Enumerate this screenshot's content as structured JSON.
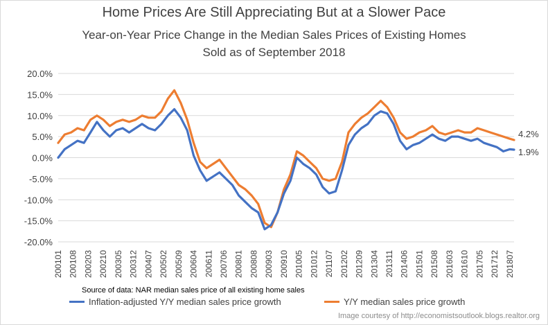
{
  "chart_data": {
    "type": "line",
    "title": "Home Prices Are Still Appreciating But at a Slower Pace",
    "subtitle_line1": "Year-on-Year Price Change in the Median Sales Prices of Existing Homes",
    "subtitle_line2": "Sold as of September 2018",
    "ylim": [
      -20,
      20
    ],
    "yticks": [
      "20.0%",
      "15.0%",
      "10.0%",
      "5.0%",
      "0.0%",
      "-5.0%",
      "-10.0%",
      "-15.0%",
      "-20.0%"
    ],
    "xlim": [
      "2001-01",
      "2018-09"
    ],
    "xticks": [
      "200101",
      "200108",
      "200203",
      "200210",
      "200305",
      "200312",
      "200407",
      "200502",
      "200509",
      "200604",
      "200611",
      "200706",
      "200801",
      "200808",
      "200903",
      "200910",
      "201005",
      "201012",
      "201107",
      "201202",
      "201209",
      "201304",
      "201311",
      "201406",
      "201501",
      "201508",
      "201603",
      "201610",
      "201705",
      "201712",
      "201807"
    ],
    "grid": "horizontal",
    "legend_position": "bottom",
    "series": [
      {
        "name": "Inflation-adjusted Y/Y median sales price growth",
        "color": "#4472c4",
        "end_label": "1.9%",
        "points": [
          [
            "2001-01",
            0.0
          ],
          [
            "2001-04",
            2.0
          ],
          [
            "2001-07",
            3.0
          ],
          [
            "2001-10",
            4.0
          ],
          [
            "2002-01",
            3.5
          ],
          [
            "2002-04",
            6.0
          ],
          [
            "2002-07",
            8.5
          ],
          [
            "2002-10",
            6.5
          ],
          [
            "2003-01",
            5.0
          ],
          [
            "2003-04",
            6.5
          ],
          [
            "2003-07",
            7.0
          ],
          [
            "2003-10",
            6.0
          ],
          [
            "2004-01",
            7.0
          ],
          [
            "2004-04",
            8.0
          ],
          [
            "2004-07",
            7.0
          ],
          [
            "2004-10",
            6.5
          ],
          [
            "2005-01",
            8.0
          ],
          [
            "2005-04",
            10.0
          ],
          [
            "2005-07",
            11.5
          ],
          [
            "2005-10",
            9.5
          ],
          [
            "2006-01",
            6.5
          ],
          [
            "2006-04",
            0.5
          ],
          [
            "2006-07",
            -3.0
          ],
          [
            "2006-10",
            -5.5
          ],
          [
            "2007-01",
            -4.5
          ],
          [
            "2007-04",
            -3.5
          ],
          [
            "2007-07",
            -5.0
          ],
          [
            "2007-10",
            -6.5
          ],
          [
            "2008-01",
            -9.0
          ],
          [
            "2008-04",
            -10.5
          ],
          [
            "2008-07",
            -12.0
          ],
          [
            "2008-10",
            -13.0
          ],
          [
            "2009-01",
            -17.0
          ],
          [
            "2009-04",
            -16.0
          ],
          [
            "2009-07",
            -13.0
          ],
          [
            "2009-10",
            -8.5
          ],
          [
            "2010-01",
            -5.5
          ],
          [
            "2010-04",
            0.0
          ],
          [
            "2010-07",
            -1.5
          ],
          [
            "2010-10",
            -2.5
          ],
          [
            "2011-01",
            -4.0
          ],
          [
            "2011-04",
            -7.0
          ],
          [
            "2011-07",
            -8.5
          ],
          [
            "2011-10",
            -8.0
          ],
          [
            "2012-01",
            -3.0
          ],
          [
            "2012-04",
            3.0
          ],
          [
            "2012-07",
            5.5
          ],
          [
            "2012-10",
            7.0
          ],
          [
            "2013-01",
            8.0
          ],
          [
            "2013-04",
            10.0
          ],
          [
            "2013-07",
            11.0
          ],
          [
            "2013-10",
            10.5
          ],
          [
            "2014-01",
            8.0
          ],
          [
            "2014-04",
            4.0
          ],
          [
            "2014-07",
            2.0
          ],
          [
            "2014-10",
            3.0
          ],
          [
            "2015-01",
            3.5
          ],
          [
            "2015-04",
            4.5
          ],
          [
            "2015-07",
            5.5
          ],
          [
            "2015-10",
            4.5
          ],
          [
            "2016-01",
            4.0
          ],
          [
            "2016-04",
            5.0
          ],
          [
            "2016-07",
            5.0
          ],
          [
            "2016-10",
            4.5
          ],
          [
            "2017-01",
            4.0
          ],
          [
            "2017-04",
            4.5
          ],
          [
            "2017-07",
            3.5
          ],
          [
            "2017-10",
            3.0
          ],
          [
            "2018-01",
            2.5
          ],
          [
            "2018-04",
            1.5
          ],
          [
            "2018-07",
            2.0
          ],
          [
            "2018-09",
            1.9
          ]
        ]
      },
      {
        "name": "Y/Y median sales price growth",
        "color": "#ed7d31",
        "end_label": "4.2%",
        "points": [
          [
            "2001-01",
            3.5
          ],
          [
            "2001-04",
            5.5
          ],
          [
            "2001-07",
            6.0
          ],
          [
            "2001-10",
            7.0
          ],
          [
            "2002-01",
            6.5
          ],
          [
            "2002-04",
            9.0
          ],
          [
            "2002-07",
            10.0
          ],
          [
            "2002-10",
            9.0
          ],
          [
            "2003-01",
            7.5
          ],
          [
            "2003-04",
            8.5
          ],
          [
            "2003-07",
            9.0
          ],
          [
            "2003-10",
            8.5
          ],
          [
            "2004-01",
            9.0
          ],
          [
            "2004-04",
            10.0
          ],
          [
            "2004-07",
            9.5
          ],
          [
            "2004-10",
            9.5
          ],
          [
            "2005-01",
            11.0
          ],
          [
            "2005-04",
            14.0
          ],
          [
            "2005-07",
            16.0
          ],
          [
            "2005-10",
            13.0
          ],
          [
            "2006-01",
            9.0
          ],
          [
            "2006-04",
            3.5
          ],
          [
            "2006-07",
            -1.0
          ],
          [
            "2006-10",
            -2.5
          ],
          [
            "2007-01",
            -1.5
          ],
          [
            "2007-04",
            -0.5
          ],
          [
            "2007-07",
            -2.5
          ],
          [
            "2007-10",
            -4.5
          ],
          [
            "2008-01",
            -6.5
          ],
          [
            "2008-04",
            -7.5
          ],
          [
            "2008-07",
            -9.0
          ],
          [
            "2008-10",
            -11.0
          ],
          [
            "2009-01",
            -15.5
          ],
          [
            "2009-04",
            -16.5
          ],
          [
            "2009-07",
            -13.0
          ],
          [
            "2009-10",
            -7.5
          ],
          [
            "2010-01",
            -4.0
          ],
          [
            "2010-04",
            1.5
          ],
          [
            "2010-07",
            0.5
          ],
          [
            "2010-10",
            -1.0
          ],
          [
            "2011-01",
            -2.5
          ],
          [
            "2011-04",
            -5.0
          ],
          [
            "2011-07",
            -5.5
          ],
          [
            "2011-10",
            -5.0
          ],
          [
            "2012-01",
            -1.0
          ],
          [
            "2012-04",
            6.0
          ],
          [
            "2012-07",
            8.0
          ],
          [
            "2012-10",
            9.5
          ],
          [
            "2013-01",
            10.5
          ],
          [
            "2013-04",
            12.0
          ],
          [
            "2013-07",
            13.5
          ],
          [
            "2013-10",
            12.0
          ],
          [
            "2014-01",
            9.5
          ],
          [
            "2014-04",
            6.0
          ],
          [
            "2014-07",
            4.5
          ],
          [
            "2014-10",
            5.0
          ],
          [
            "2015-01",
            6.0
          ],
          [
            "2015-04",
            6.5
          ],
          [
            "2015-07",
            7.5
          ],
          [
            "2015-10",
            6.0
          ],
          [
            "2016-01",
            5.5
          ],
          [
            "2016-04",
            6.0
          ],
          [
            "2016-07",
            6.5
          ],
          [
            "2016-10",
            6.0
          ],
          [
            "2017-01",
            6.0
          ],
          [
            "2017-04",
            7.0
          ],
          [
            "2017-07",
            6.5
          ],
          [
            "2017-10",
            6.0
          ],
          [
            "2018-01",
            5.5
          ],
          [
            "2018-04",
            5.0
          ],
          [
            "2018-07",
            4.5
          ],
          [
            "2018-09",
            4.2
          ]
        ]
      }
    ]
  },
  "footer": {
    "source": "Source of data: NAR median sales price of all existing home sales",
    "credit": "Image courtesy of  http://economistsoutlook.blogs.realtor.org"
  }
}
